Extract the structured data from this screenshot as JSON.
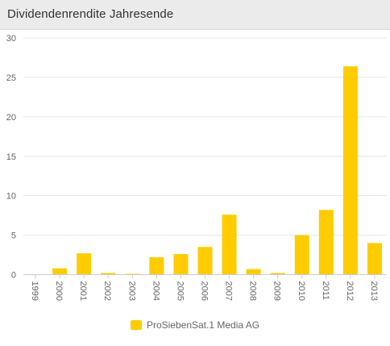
{
  "header": {
    "title": "Dividendenrendite Jahresende"
  },
  "colors": {
    "bar": "#ffcc00"
  },
  "chart_data": {
    "type": "bar",
    "title": "Dividendenrendite Jahresende",
    "categories": [
      "1999",
      "2000",
      "2001",
      "2002",
      "2003",
      "2004",
      "2005",
      "2006",
      "2007",
      "2008",
      "2009",
      "2010",
      "2011",
      "2012",
      "2013"
    ],
    "series": [
      {
        "name": "ProSiebenSat.1 Media AG",
        "values": [
          0,
          0.8,
          2.7,
          0.2,
          0.1,
          2.2,
          2.6,
          3.5,
          7.6,
          0.7,
          0.2,
          5.0,
          8.2,
          26.4,
          4.0
        ]
      }
    ],
    "yticks": [
      "0",
      "5",
      "10",
      "15",
      "20",
      "25",
      "30"
    ],
    "ylim": [
      0,
      30
    ],
    "grid": true,
    "legend_position": "bottom-center"
  }
}
